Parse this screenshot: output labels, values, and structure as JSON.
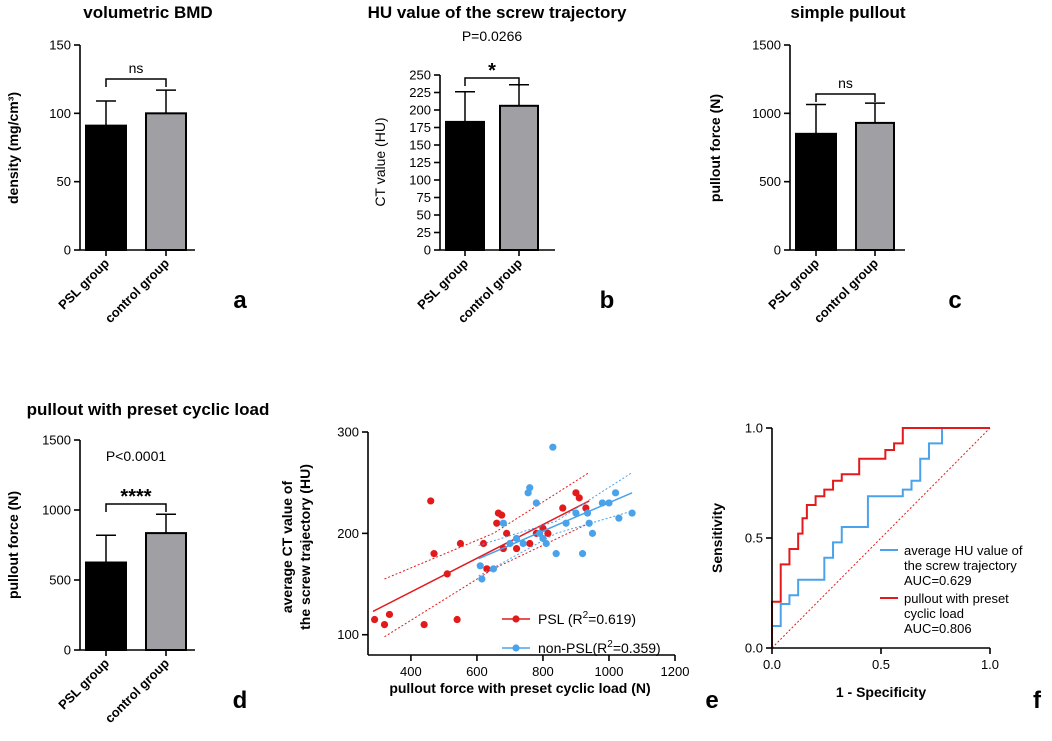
{
  "chart_data": [
    {
      "id": "a",
      "panel_label": "a",
      "type": "bar",
      "title": "volumetric BMD",
      "ylabel": "density (mg/cm³)",
      "ylim": [
        0,
        150
      ],
      "yticks": [
        0,
        50,
        100,
        150
      ],
      "categories": [
        "PSL group",
        "control group"
      ],
      "values": [
        91,
        100
      ],
      "errors": [
        18,
        17
      ],
      "colors": [
        "#000000",
        "#a0a0a4"
      ],
      "significance": {
        "text": "ns",
        "p_label": ""
      }
    },
    {
      "id": "b",
      "panel_label": "b",
      "type": "bar",
      "title": "HU value of the screw trajectory",
      "ylabel": "CT value (HU)",
      "ylim": [
        0,
        250
      ],
      "yticks": [
        0,
        25,
        50,
        75,
        100,
        125,
        150,
        175,
        200,
        225,
        250
      ],
      "categories": [
        "PSL group",
        "control group"
      ],
      "values": [
        183,
        206
      ],
      "errors": [
        43,
        30
      ],
      "colors": [
        "#000000",
        "#a0a0a4"
      ],
      "significance": {
        "text": "*",
        "p_label": "P=0.0266"
      }
    },
    {
      "id": "c",
      "panel_label": "c",
      "type": "bar",
      "title": "simple pullout",
      "ylabel": "pullout force (N)",
      "ylim": [
        0,
        1500
      ],
      "yticks": [
        0,
        500,
        1000,
        1500
      ],
      "categories": [
        "PSL group",
        "control group"
      ],
      "values": [
        850,
        930
      ],
      "errors": [
        215,
        145
      ],
      "colors": [
        "#000000",
        "#a0a0a4"
      ],
      "significance": {
        "text": "ns",
        "p_label": ""
      }
    },
    {
      "id": "d",
      "panel_label": "d",
      "type": "bar",
      "title": "pullout with preset cyclic load",
      "ylabel": "pullout force (N)",
      "ylim": [
        0,
        1500
      ],
      "yticks": [
        0,
        500,
        1000,
        1500
      ],
      "categories": [
        "PSL group",
        "control group"
      ],
      "values": [
        625,
        835
      ],
      "errors": [
        195,
        135
      ],
      "colors": [
        "#000000",
        "#a0a0a4"
      ],
      "significance": {
        "text": "****",
        "p_label": "P<0.0001"
      }
    },
    {
      "id": "e",
      "panel_label": "e",
      "type": "scatter",
      "title": "",
      "xlabel": "pullout force with preset cyclic load (N)",
      "ylabel": [
        "average CT value of",
        "the screw trajectory (HU)"
      ],
      "xlim": [
        270,
        1200
      ],
      "ylim": [
        80,
        300
      ],
      "xticks": [
        400,
        600,
        800,
        1000,
        1200
      ],
      "yticks": [
        100,
        200,
        300
      ],
      "series": [
        {
          "name": "PSL",
          "legend_main": "PSL (R",
          "legend_sup": "2",
          "legend_rest": "=0.619)",
          "color": "#e31a1c",
          "points": [
            [
              290,
              115
            ],
            [
              320,
              110
            ],
            [
              335,
              120
            ],
            [
              440,
              110
            ],
            [
              460,
              232
            ],
            [
              470,
              180
            ],
            [
              510,
              160
            ],
            [
              540,
              115
            ],
            [
              550,
              190
            ],
            [
              620,
              190
            ],
            [
              630,
              165
            ],
            [
              660,
              210
            ],
            [
              665,
              220
            ],
            [
              675,
              218
            ],
            [
              680,
              185
            ],
            [
              690,
              200
            ],
            [
              720,
              185
            ],
            [
              760,
              190
            ],
            [
              780,
              200
            ],
            [
              800,
              205
            ],
            [
              815,
              200
            ],
            [
              860,
              225
            ],
            [
              900,
              240
            ],
            [
              910,
              235
            ],
            [
              930,
              225
            ]
          ],
          "fit": [
            [
              285,
              123
            ],
            [
              940,
              232
            ]
          ],
          "ci_upper": [
            [
              320,
              155
            ],
            [
              650,
              200
            ],
            [
              940,
              260
            ]
          ],
          "ci_lower": [
            [
              320,
              98
            ],
            [
              650,
              165
            ],
            [
              940,
              210
            ]
          ]
        },
        {
          "name": "non-PSL",
          "legend_main": "non-PSL(R",
          "legend_sup": "2",
          "legend_rest": "=0.359)",
          "color": "#4aa3ea",
          "points": [
            [
              610,
              168
            ],
            [
              615,
              155
            ],
            [
              650,
              165
            ],
            [
              680,
              210
            ],
            [
              700,
              190
            ],
            [
              720,
              195
            ],
            [
              740,
              190
            ],
            [
              755,
              240
            ],
            [
              760,
              245
            ],
            [
              780,
              230
            ],
            [
              790,
              200
            ],
            [
              800,
              195
            ],
            [
              810,
              190
            ],
            [
              830,
              285
            ],
            [
              840,
              180
            ],
            [
              870,
              210
            ],
            [
              900,
              220
            ],
            [
              920,
              180
            ],
            [
              935,
              220
            ],
            [
              940,
              210
            ],
            [
              950,
              200
            ],
            [
              980,
              230
            ],
            [
              1000,
              230
            ],
            [
              1020,
              240
            ],
            [
              1030,
              215
            ],
            [
              1070,
              220
            ]
          ],
          "fit": [
            [
              605,
              175
            ],
            [
              1070,
              240
            ]
          ],
          "ci_upper": [
            [
              605,
              188
            ],
            [
              840,
              212
            ],
            [
              1070,
              260
            ]
          ],
          "ci_lower": [
            [
              605,
              158
            ],
            [
              840,
              200
            ],
            [
              1070,
              222
            ]
          ]
        }
      ]
    },
    {
      "id": "f",
      "panel_label": "f",
      "type": "line",
      "title": "",
      "xlabel": "1 - Specificity",
      "ylabel": "Sensitivity",
      "xlim": [
        0,
        1
      ],
      "ylim": [
        0,
        1
      ],
      "xticks": [
        0,
        0.5,
        1
      ],
      "yticks": [
        0,
        0.5,
        1
      ],
      "xtick_labels": [
        "0.0",
        "0.5",
        "1.0"
      ],
      "ytick_labels": [
        "0.0",
        "0.5",
        "1.0"
      ],
      "reference_line": {
        "color": "#e31a1c"
      },
      "series": [
        {
          "name": "average HU value of the screw trajectory",
          "legend_lines": [
            "average HU value of",
            "the screw trajectory",
            "AUC=0.629"
          ],
          "auc": 0.629,
          "color": "#4aa3ea",
          "points": [
            [
              0,
              0
            ],
            [
              0,
              0.1
            ],
            [
              0.04,
              0.1
            ],
            [
              0.04,
              0.2
            ],
            [
              0.08,
              0.2
            ],
            [
              0.08,
              0.24
            ],
            [
              0.12,
              0.24
            ],
            [
              0.12,
              0.31
            ],
            [
              0.24,
              0.31
            ],
            [
              0.24,
              0.41
            ],
            [
              0.28,
              0.41
            ],
            [
              0.28,
              0.48
            ],
            [
              0.32,
              0.48
            ],
            [
              0.32,
              0.55
            ],
            [
              0.44,
              0.55
            ],
            [
              0.44,
              0.69
            ],
            [
              0.6,
              0.69
            ],
            [
              0.6,
              0.72
            ],
            [
              0.64,
              0.72
            ],
            [
              0.64,
              0.76
            ],
            [
              0.68,
              0.76
            ],
            [
              0.68,
              0.86
            ],
            [
              0.72,
              0.86
            ],
            [
              0.72,
              0.93
            ],
            [
              0.78,
              0.93
            ],
            [
              0.78,
              1.0
            ],
            [
              1.0,
              1.0
            ]
          ]
        },
        {
          "name": "pullout with preset cyclic load",
          "legend_lines": [
            "pullout with preset",
            "cyclic load",
            "AUC=0.806"
          ],
          "auc": 0.806,
          "color": "#e31a1c",
          "points": [
            [
              0,
              0
            ],
            [
              0,
              0.21
            ],
            [
              0.04,
              0.21
            ],
            [
              0.04,
              0.38
            ],
            [
              0.08,
              0.38
            ],
            [
              0.08,
              0.45
            ],
            [
              0.12,
              0.45
            ],
            [
              0.12,
              0.52
            ],
            [
              0.14,
              0.52
            ],
            [
              0.14,
              0.59
            ],
            [
              0.16,
              0.59
            ],
            [
              0.16,
              0.65
            ],
            [
              0.2,
              0.65
            ],
            [
              0.2,
              0.69
            ],
            [
              0.24,
              0.69
            ],
            [
              0.24,
              0.72
            ],
            [
              0.28,
              0.72
            ],
            [
              0.28,
              0.76
            ],
            [
              0.32,
              0.76
            ],
            [
              0.32,
              0.79
            ],
            [
              0.4,
              0.79
            ],
            [
              0.4,
              0.86
            ],
            [
              0.52,
              0.86
            ],
            [
              0.52,
              0.9
            ],
            [
              0.56,
              0.9
            ],
            [
              0.56,
              0.93
            ],
            [
              0.6,
              0.93
            ],
            [
              0.6,
              1.0
            ],
            [
              1.0,
              1.0
            ]
          ]
        }
      ]
    }
  ]
}
